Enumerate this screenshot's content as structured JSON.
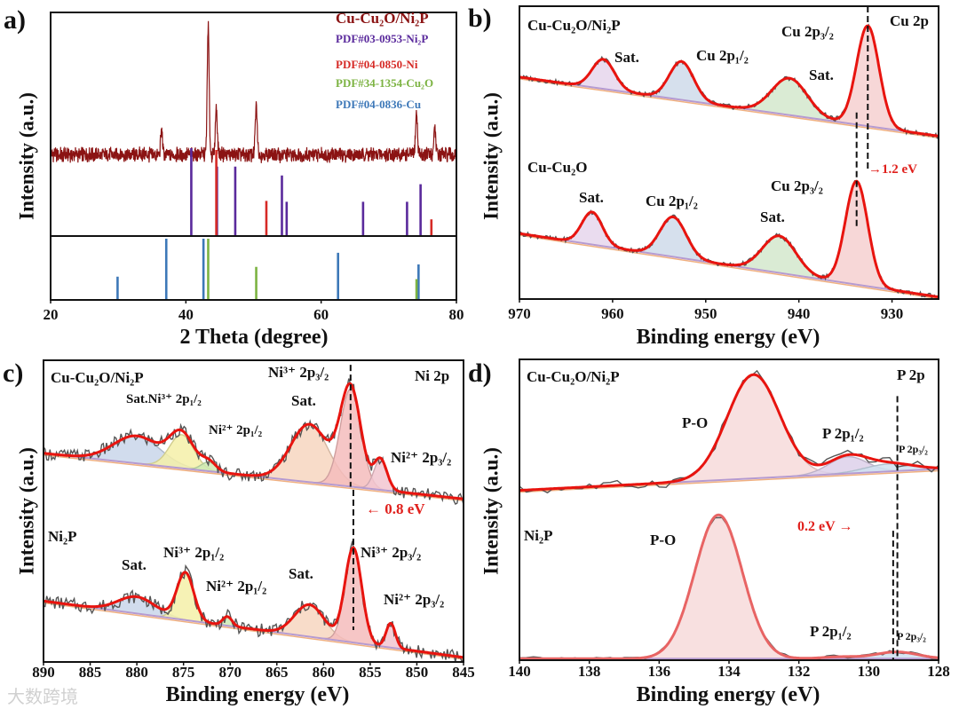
{
  "panel_labels": [
    "a)",
    "b)",
    "c)",
    "d)"
  ],
  "watermark": "大数跨境",
  "chart_data": [
    {
      "type": "line",
      "panel": "a)",
      "xlabel": "2 Theta (degree)",
      "ylabel": "Intensity (a.u.)",
      "xlim": [
        20,
        80
      ],
      "xticks": [
        20,
        40,
        60,
        80
      ],
      "grid": false,
      "legend_placement": "top-right",
      "legend": [
        {
          "label": "Cu-Cu₂O/Ni₂P",
          "color": "#8b1313"
        },
        {
          "label": "PDF#03-0953-Ni₂P",
          "color": "#5a2a9c"
        },
        {
          "label": "PDF#04-0850-Ni",
          "color": "#d62a26"
        },
        {
          "label": "PDF#34-1354-Cu₂O",
          "color": "#7cb342"
        },
        {
          "label": "PDF#04-0836-Cu",
          "color": "#3d78b8"
        }
      ],
      "trace": {
        "name": "Cu-Cu₂O/Ni₂P",
        "color": "#8b1313",
        "baseline": 490,
        "noise": 22,
        "peaks": [
          {
            "center": 36.4,
            "height": 80
          },
          {
            "center": 43.3,
            "height": 435
          },
          {
            "center": 44.5,
            "height": 160
          },
          {
            "center": 50.4,
            "height": 162
          },
          {
            "center": 74.1,
            "height": 142
          },
          {
            "center": 76.8,
            "height": 95
          }
        ]
      },
      "reference_sticks": [
        {
          "name": "PDF#03-0953-Ni₂P",
          "color": "#5a2a9c",
          "section": "upper",
          "positions": [
            40.8,
            44.6,
            47.3,
            54.2,
            54.9,
            66.2,
            72.7,
            74.7
          ],
          "intensities": [
            100,
            79,
            79,
            69,
            39,
            39,
            39,
            59
          ]
        },
        {
          "name": "PDF#04-0850-Ni",
          "color": "#d62a26",
          "section": "upper",
          "positions": [
            44.5,
            51.9,
            76.3
          ],
          "intensities": [
            98,
            40,
            19
          ]
        },
        {
          "name": "PDF#04-0836-Cu",
          "color": "#3d78b8",
          "section": "lower",
          "positions": [
            29.9,
            37.1,
            42.6,
            62.5,
            74.4
          ],
          "intensities": [
            38,
            100,
            100,
            77,
            58
          ]
        },
        {
          "name": "PDF#34-1354-Cu₂O",
          "color": "#7cb342",
          "section": "lower",
          "positions": [
            43.3,
            50.4,
            74.1
          ],
          "intensities": [
            100,
            54,
            34
          ]
        }
      ]
    },
    {
      "type": "line",
      "panel": "b)",
      "title": "Cu 2p",
      "xlabel": "Binding energy (eV)",
      "ylabel": "Intensity (a.u.)",
      "xlim": [
        970,
        925
      ],
      "ylim": [
        0,
        992
      ],
      "xticks": [
        970,
        960,
        950,
        940,
        930
      ],
      "shift_label": "→1.2 eV",
      "reference_lines": [
        {
          "x": 932.6,
          "from": 992,
          "to": 440
        },
        {
          "x": 933.8,
          "from": 632,
          "to": 242
        }
      ],
      "spectra": [
        {
          "name": "Cu-Cu₂O/Ni₂P",
          "background": [
            752,
            552
          ],
          "noise": 8,
          "annotations": [
            "Sat.",
            "Cu 2p₁/₂",
            "Cu 2p₃/₂",
            "Sat."
          ],
          "peaks": [
            {
              "label": "Sat.",
              "center": 961.0,
              "height": 100,
              "width": 1.2,
              "color": "#e6d6ec"
            },
            {
              "label": "Cu 2p1/2",
              "center": 952.6,
              "height": 130,
              "width": 1.3,
              "color": "#cfdbea"
            },
            {
              "label": "Sat.",
              "center": 941.0,
              "height": 125,
              "width": 1.9,
              "color": "#d4e8cc"
            },
            {
              "label": "Cu 2p3/2",
              "center": 932.6,
              "height": 340,
              "width": 1.2,
              "color": "#f6d0d0"
            }
          ]
        },
        {
          "name": "Cu-Cu₂O",
          "background": [
            222,
            7
          ],
          "noise": 8,
          "annotations": [
            "Sat.",
            "Cu 2p₁/₂",
            "Sat.",
            "Cu 2p₃/₂"
          ],
          "peaks": [
            {
              "label": "Sat.",
              "center": 962.2,
              "height": 110,
              "width": 1.1,
              "color": "#e6d6ec"
            },
            {
              "label": "Cu 2p1/2",
              "center": 953.5,
              "height": 135,
              "width": 1.4,
              "color": "#cfdbea"
            },
            {
              "label": "Sat.",
              "center": 942.1,
              "height": 125,
              "width": 1.8,
              "color": "#d4e8cc"
            },
            {
              "label": "Cu 2p3/2",
              "center": 933.8,
              "height": 350,
              "width": 1.2,
              "color": "#f6d0d0"
            }
          ]
        }
      ]
    },
    {
      "type": "line",
      "panel": "c)",
      "title": "Ni 2p",
      "xlabel": "Binding energy (eV)",
      "ylabel": "Intensity (a.u.)",
      "xlim": [
        890,
        845
      ],
      "ylim": [
        0,
        990
      ],
      "xticks": [
        890,
        885,
        880,
        875,
        870,
        865,
        860,
        855,
        850,
        845
      ],
      "shift_label": "← 0.8 eV",
      "reference_lines": [
        {
          "x": 857.1,
          "from": 975,
          "to": 575
        },
        {
          "x": 856.8,
          "from": 565,
          "to": 105
        }
      ],
      "spectra": [
        {
          "name": "Cu-Cu₂O/Ni₂P",
          "background": [
            685,
            535
          ],
          "noise": 22,
          "annotations": [
            "Sat.Ni³⁺ 2p₁/₂",
            "Ni²⁺ 2p₁/₂",
            "Sat.",
            "Ni³⁺ 2p₃/₂",
            "Ni²⁺ 2p₃/₂"
          ],
          "peaks": [
            {
              "label": "Sat.",
              "center": 880.0,
              "height": 90,
              "width": 2.5,
              "color": "#c9d6ea"
            },
            {
              "label": "Ni3+ 2p1/2",
              "center": 875.2,
              "height": 110,
              "width": 1.3,
              "color": "#f5f0a8"
            },
            {
              "label": "Ni2+ 2p1/2",
              "center": 872.3,
              "height": 30,
              "width": 0.8,
              "color": "#cdeab4"
            },
            {
              "label": "Sat.",
              "center": 861.5,
              "height": 190,
              "width": 2.0,
              "color": "#f7d6bf"
            },
            {
              "label": "Ni3+ 2p3/2",
              "center": 857.1,
              "height": 320,
              "width": 1.1,
              "color": "#f4bcbc"
            },
            {
              "label": "Ni2+ 2p3/2",
              "center": 853.9,
              "height": 100,
              "width": 0.7,
              "color": "#f2c6d0"
            }
          ]
        },
        {
          "name": "Ni₂P",
          "background": [
            200,
            15
          ],
          "noise": 22,
          "annotations": [
            "Sat.",
            "Ni³⁺ 2p₁/₂",
            "Ni²⁺ 2p₁/₂",
            "Sat.",
            "Ni³⁺ 2p₃/₂",
            "Ni²⁺ 2p₃/₂"
          ],
          "peaks": [
            {
              "label": "Sat.",
              "center": 880.0,
              "height": 55,
              "width": 2.0,
              "color": "#c9d6ea"
            },
            {
              "label": "Ni3+ 2p1/2",
              "center": 874.8,
              "height": 155,
              "width": 0.9,
              "color": "#f5f0a8"
            },
            {
              "label": "Ni2+ 2p1/2",
              "center": 870.3,
              "height": 30,
              "width": 0.5,
              "color": "#cdeab4"
            },
            {
              "label": "Sat.",
              "center": 861.5,
              "height": 105,
              "width": 1.6,
              "color": "#f7d6bf"
            },
            {
              "label": "Ni3+ 2p3/2",
              "center": 856.8,
              "height": 310,
              "width": 0.9,
              "color": "#f4bcbc"
            },
            {
              "label": "Ni2+ 2p3/2",
              "center": 852.8,
              "height": 80,
              "width": 0.5,
              "color": "#f2c6d0"
            }
          ]
        }
      ]
    },
    {
      "type": "line",
      "panel": "d)",
      "title": "P 2p",
      "xlabel": "Binding energy (eV)",
      "ylabel": "Intensity (a.u.)",
      "xlim": [
        140,
        128
      ],
      "ylim": [
        0,
        983
      ],
      "xticks": [
        140,
        138,
        136,
        134,
        132,
        130,
        128
      ],
      "shift_label": "0.2 eV →",
      "reference_lines": [
        {
          "x": 129.18,
          "from": 863,
          "to": 0
        },
        {
          "x": 129.3,
          "from": 423,
          "to": 0
        }
      ],
      "spectra": [
        {
          "name": "Cu-Cu₂O/Ni₂P",
          "background": [
            555,
            625
          ],
          "noise": 16,
          "annotations": [
            "P-O",
            "P 2p₁/₂",
            "P 2p₃/₂"
          ],
          "peaks": [
            {
              "label": "P-O",
              "center": 133.3,
              "height": 339,
              "width": 0.75,
              "color": "#f7dada"
            },
            {
              "label": "P 2p1/2",
              "center": 130.6,
              "height": 55,
              "width": 0.55,
              "color": "#ddd0ea"
            },
            {
              "label": "P 2p3/2",
              "center": 129.4,
              "height": 25,
              "width": 0.7,
              "color": "#cfe0f0"
            }
          ]
        },
        {
          "name": "Ni₂P",
          "background": [
            5,
            5
          ],
          "noise": 6,
          "annotations": [
            "P-O",
            "P 2p₁/₂",
            "P 2p₃/₂"
          ],
          "peaks": [
            {
              "label": "P-O",
              "center": 134.3,
              "height": 470,
              "width": 0.68,
              "color": "#f7dada"
            },
            {
              "label": "P 2p1/2",
              "center": 130.8,
              "height": 6,
              "width": 0.5,
              "color": "#ddd0ea"
            },
            {
              "label": "P 2p3/2",
              "center": 129.2,
              "height": 22,
              "width": 0.6,
              "color": "#cfe0f0"
            }
          ]
        }
      ]
    }
  ]
}
